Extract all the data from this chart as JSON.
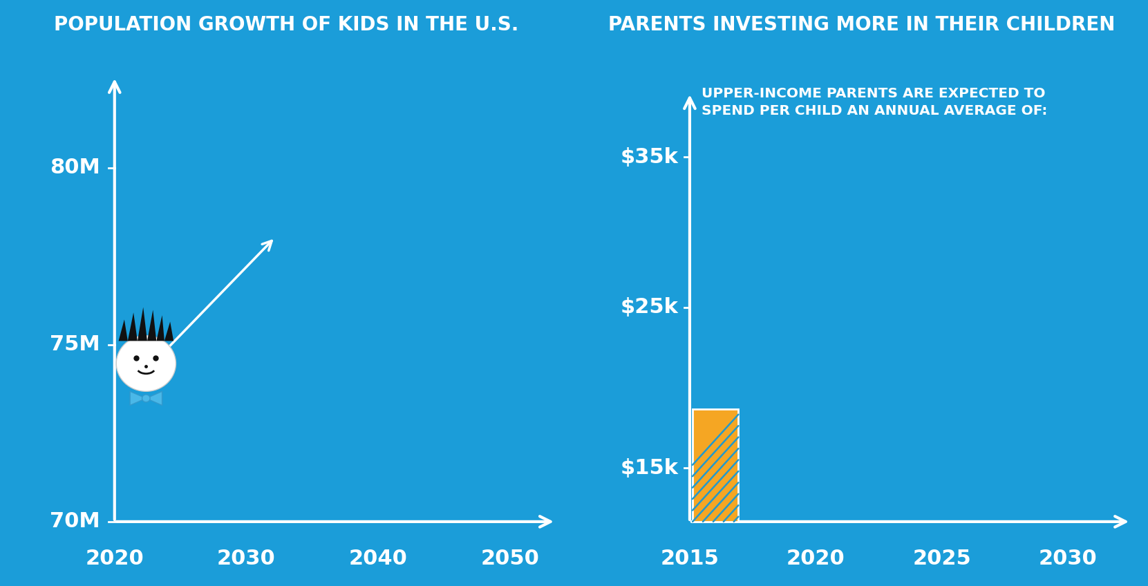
{
  "bg_color": "#1b9dd9",
  "green_color": "#6aaa3a",
  "white": "#ffffff",
  "black": "#0a0a0a",
  "title1": "Population Growth of Kids in the U.S.",
  "title2": "Parents Investing More in Their Children",
  "subtitle2": "Upper-Income Parents Are Expected To\nSpend Per Child An Annual Average Of:",
  "left_ytick_labels": [
    "70M",
    "75M",
    "80M"
  ],
  "left_xtick_labels": [
    "2020",
    "2030",
    "2040",
    "2050"
  ],
  "right_ytick_labels": [
    "$15k",
    "$25k",
    "$35k"
  ],
  "right_xtick_labels": [
    "2015",
    "2020",
    "2025",
    "2030"
  ],
  "bar_color": "#f5a623",
  "hatch_color": "#2299cc"
}
